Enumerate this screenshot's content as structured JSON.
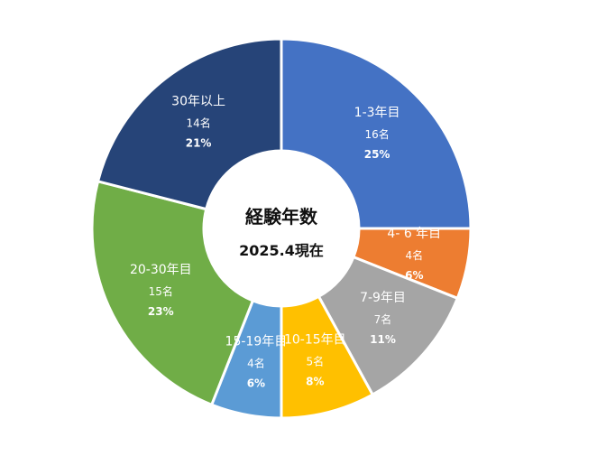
{
  "chart_data": {
    "type": "pie",
    "variant": "donut",
    "center_title": "経験年数",
    "center_subtitle": "2025.4現在",
    "start_angle_deg": 0,
    "direction": "clockwise",
    "slices": [
      {
        "label": "1-3年目",
        "count": "16名",
        "percent": "25%",
        "value": 25,
        "color": "#4472C4"
      },
      {
        "label": "4- 6 年目",
        "count": "4名",
        "percent": "6%",
        "value": 6,
        "color": "#ED7D31"
      },
      {
        "label": "7-9年目",
        "count": "7名",
        "percent": "11%",
        "value": 11,
        "color": "#A5A5A5"
      },
      {
        "label": "10-15年目",
        "count": "5名",
        "percent": "8%",
        "value": 8,
        "color": "#FFC000"
      },
      {
        "label": "15-19年目",
        "count": "4名",
        "percent": "6%",
        "value": 6,
        "color": "#5B9BD5"
      },
      {
        "label": "20-30年目",
        "count": "15名",
        "percent": "23%",
        "value": 23,
        "color": "#70AD47"
      },
      {
        "label": "30年以上",
        "count": "14名",
        "percent": "21%",
        "value": 21,
        "color": "#264478"
      }
    ]
  }
}
